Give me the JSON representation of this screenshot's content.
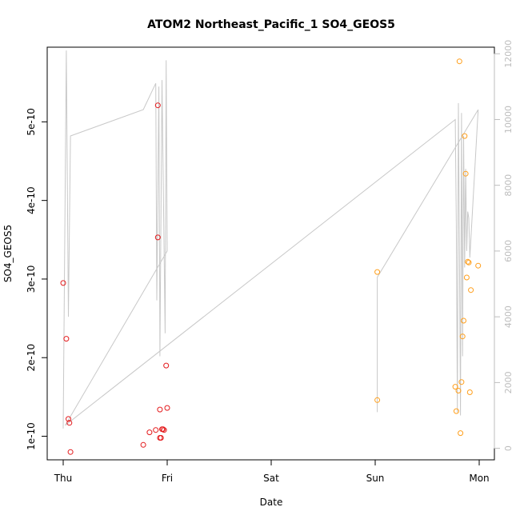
{
  "chart_data": {
    "type": "scatter",
    "title": "ATOM2 Northeast_Pacific_1 SO4_GEOS5",
    "xlabel": "Date",
    "ylabel": "SO4_GEOS5",
    "x_tick_labels": [
      "Thu",
      "Fri",
      "Sat",
      "Sun",
      "Mon"
    ],
    "x_range_days": [
      -0.15,
      4.1
    ],
    "y_left": {
      "ticks": [
        1e-10,
        2e-10,
        3e-10,
        4e-10,
        5e-10
      ],
      "tick_labels": [
        "1e-10",
        "2e-10",
        "3e-10",
        "4e-10",
        "5e-10"
      ],
      "range": [
        7e-11,
        5.95e-10
      ]
    },
    "y_right": {
      "ticks": [
        0,
        2000,
        4000,
        6000,
        8000,
        10000,
        12000
      ],
      "tick_labels": [
        "0",
        "2000",
        "4000",
        "6000",
        "8000",
        "10000",
        "12000"
      ],
      "range": [
        -350,
        12200
      ],
      "color": "#bdbdbd"
    },
    "series": [
      {
        "color": "#e41a1c",
        "points": [
          [
            0.0,
            2.95e-10
          ],
          [
            0.03,
            2.24e-10
          ],
          [
            0.05,
            1.22e-10
          ],
          [
            0.06,
            1.17e-10
          ],
          [
            0.07,
            8e-11
          ],
          [
            0.77,
            8.9e-11
          ],
          [
            0.83,
            1.05e-10
          ],
          [
            0.89,
            1.08e-10
          ],
          [
            0.91,
            5.21e-10
          ],
          [
            0.91,
            3.53e-10
          ],
          [
            0.93,
            1.34e-10
          ],
          [
            0.93,
            9.8e-11
          ],
          [
            0.94,
            9.8e-11
          ],
          [
            0.95,
            1.09e-10
          ],
          [
            0.96,
            1.09e-10
          ],
          [
            0.97,
            1.08e-10
          ],
          [
            0.99,
            1.9e-10
          ],
          [
            1.0,
            1.36e-10
          ]
        ]
      },
      {
        "color": "#ff9f1c",
        "points": [
          [
            3.02,
            3.09e-10
          ],
          [
            3.02,
            1.46e-10
          ],
          [
            3.77,
            1.63e-10
          ],
          [
            3.78,
            1.32e-10
          ],
          [
            3.8,
            1.58e-10
          ],
          [
            3.81,
            5.77e-10
          ],
          [
            3.82,
            1.04e-10
          ],
          [
            3.83,
            1.69e-10
          ],
          [
            3.84,
            2.27e-10
          ],
          [
            3.85,
            2.47e-10
          ],
          [
            3.86,
            4.82e-10
          ],
          [
            3.87,
            4.34e-10
          ],
          [
            3.88,
            3.02e-10
          ],
          [
            3.89,
            3.22e-10
          ],
          [
            3.9,
            3.21e-10
          ],
          [
            3.91,
            1.56e-10
          ],
          [
            3.92,
            2.86e-10
          ],
          [
            3.99,
            3.17e-10
          ]
        ]
      }
    ],
    "altitude_series": {
      "axis": "right",
      "color": "#c8c8c8",
      "points": [
        [
          0.0,
          600
        ],
        [
          0.03,
          12100
        ],
        [
          0.05,
          4000
        ],
        [
          0.07,
          9500
        ],
        [
          0.77,
          10300
        ],
        [
          0.8,
          10500
        ],
        [
          0.89,
          11100
        ],
        [
          0.9,
          4500
        ],
        [
          0.92,
          11000
        ],
        [
          0.93,
          2800
        ],
        [
          0.95,
          11200
        ],
        [
          0.98,
          3500
        ],
        [
          0.99,
          11800
        ],
        [
          1.0,
          6000
        ],
        [
          0.02,
          700
        ],
        [
          3.77,
          10000
        ],
        [
          3.78,
          6800
        ],
        [
          3.79,
          1100
        ],
        [
          3.8,
          10500
        ],
        [
          3.81,
          6000
        ],
        [
          3.82,
          1000
        ],
        [
          3.83,
          10200
        ],
        [
          3.84,
          2800
        ],
        [
          3.85,
          9500
        ],
        [
          3.86,
          5500
        ],
        [
          3.87,
          8500
        ],
        [
          3.88,
          6000
        ],
        [
          3.89,
          7200
        ],
        [
          3.9,
          7000
        ],
        [
          3.91,
          5800
        ],
        [
          3.99,
          10300
        ],
        [
          3.02,
          5200
        ],
        [
          3.02,
          1100
        ]
      ]
    }
  }
}
